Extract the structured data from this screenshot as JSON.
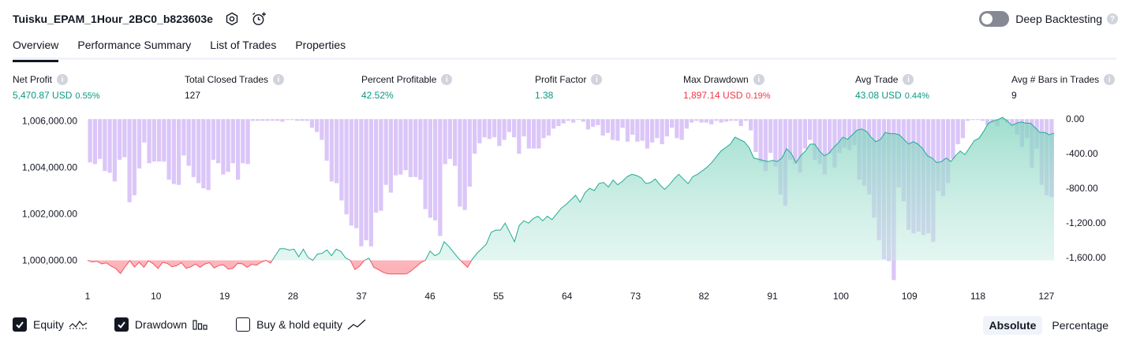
{
  "header": {
    "title": "Tuisku_EPAM_1Hour_2BC0_b823603e",
    "deep_backtesting_label": "Deep Backtesting"
  },
  "tabs": [
    {
      "label": "Overview",
      "active": true
    },
    {
      "label": "Performance Summary",
      "active": false
    },
    {
      "label": "List of Trades",
      "active": false
    },
    {
      "label": "Properties",
      "active": false
    }
  ],
  "metrics": [
    {
      "label": "Net Profit",
      "value": "5,470.87 USD",
      "pct": "0.55%",
      "color": "#089981"
    },
    {
      "label": "Total Closed Trades",
      "value": "127",
      "pct": "",
      "color": "#131722"
    },
    {
      "label": "Percent Profitable",
      "value": "42.52%",
      "pct": "",
      "color": "#089981"
    },
    {
      "label": "Profit Factor",
      "value": "1.38",
      "pct": "",
      "color": "#089981"
    },
    {
      "label": "Max Drawdown",
      "value": "1,897.14 USD",
      "pct": "0.19%",
      "color": "#f23645"
    },
    {
      "label": "Avg Trade",
      "value": "43.08 USD",
      "pct": "0.44%",
      "color": "#089981"
    },
    {
      "label": "Avg # Bars in Trades",
      "value": "9",
      "pct": "",
      "color": "#131722"
    }
  ],
  "legend": {
    "equity_label": "Equity",
    "drawdown_label": "Drawdown",
    "buy_hold_label": "Buy & hold equity"
  },
  "modes": {
    "absolute_label": "Absolute",
    "percentage_label": "Percentage"
  },
  "chart_data": {
    "type": "line",
    "x_ticks": [
      "1",
      "10",
      "19",
      "28",
      "37",
      "46",
      "55",
      "64",
      "73",
      "82",
      "91",
      "100",
      "109",
      "118",
      "127"
    ],
    "y_left_ticks": [
      "1,006,000.00",
      "1,004,000.00",
      "1,002,000.00",
      "1,000,000.00"
    ],
    "y_right_ticks": [
      "0.00",
      "-400.00",
      "-800.00",
      "-1,200.00",
      "-1,600.00"
    ],
    "y_left_range": [
      999000,
      1006150
    ],
    "y_right_range": [
      -1900,
      20
    ],
    "baseline": 1000000,
    "x_range": [
      1,
      128
    ],
    "colors": {
      "equity_line": "#22ab94",
      "equity_fill_positive": "#c7ebe2",
      "equity_negative": "#f7525f",
      "drawdown_bar": "#d9c3f8"
    },
    "series": [
      {
        "name": "Equity",
        "kind": "line",
        "values": [
          1000000,
          999930,
          999960,
          999850,
          999890,
          999750,
          999650,
          999430,
          999720,
          999990,
          999710,
          999920,
          999700,
          999980,
          999850,
          999650,
          999910,
          999870,
          999720,
          999770,
          999900,
          999660,
          999720,
          999840,
          999700,
          999840,
          999900,
          999670,
          999780,
          999800,
          999620,
          999660,
          999870,
          999850,
          999700,
          999830,
          999790,
          999920,
          1000000,
          999880,
          1000200,
          1000500,
          1000500,
          1000440,
          1000480,
          1000150,
          1000480,
          1000120,
          1000000,
          1000270,
          1000300,
          1000450,
          1000200,
          1000480,
          1000380,
          1000100,
          1000000,
          999600,
          999750,
          1000000,
          1000090,
          999700,
          999600,
          999480,
          999420,
          999410,
          999420,
          999410,
          999420,
          999550,
          999720,
          999900,
          1000000,
          1000400,
          1000200,
          1000300,
          1000800,
          1000600,
          1000350,
          1000100,
          999890,
          999700,
          1000050,
          1000300,
          1000500,
          1000700,
          1001200,
          1001300,
          1001300,
          1001600,
          1001200,
          1000800,
          1001500,
          1001700,
          1001600,
          1001800,
          1001900,
          1001700,
          1001900,
          1001750,
          1002000,
          1002250,
          1002400,
          1002600,
          1002800,
          1002500,
          1002900,
          1003100,
          1003000,
          1003300,
          1003350,
          1003150,
          1003450,
          1003250,
          1003400,
          1003600,
          1003700,
          1003650,
          1003550,
          1003300,
          1003350,
          1003500,
          1003250,
          1003050,
          1003250,
          1003500,
          1003700,
          1003500,
          1003300,
          1003600,
          1003700,
          1003850,
          1004000,
          1004200,
          1004450,
          1004700,
          1004850,
          1005000,
          1005300,
          1005200,
          1005100,
          1004850,
          1004400,
          1004350,
          1004300,
          1004250,
          1004300,
          1004250,
          1004400,
          1004800,
          1004600,
          1004200,
          1004500,
          1004700,
          1005000,
          1005000,
          1004700,
          1004500,
          1004600,
          1004850,
          1005050,
          1005300,
          1005200,
          1005400,
          1005600,
          1005650,
          1005550,
          1005300,
          1005100,
          1005200,
          1005500,
          1005450,
          1005450,
          1005400,
          1005200,
          1005000,
          1005100,
          1005000,
          1004800,
          1004500,
          1004400,
          1004200,
          1004250,
          1004400,
          1004250,
          1004500,
          1004700,
          1004550,
          1004850,
          1005150,
          1005250,
          1005550,
          1005900,
          1006000,
          1006050,
          1006150,
          1006000,
          1005800,
          1005900,
          1005950,
          1005900,
          1005900,
          1005700,
          1005500,
          1005500,
          1005400,
          1005470
        ]
      },
      {
        "name": "Drawdown",
        "kind": "bar",
        "values": [
          -500,
          -520,
          -460,
          -600,
          -620,
          -720,
          -470,
          -440,
          -960,
          -880,
          -570,
          -270,
          -510,
          -490,
          -490,
          -490,
          -700,
          -750,
          -760,
          -420,
          -540,
          -670,
          -740,
          -800,
          -820,
          -470,
          -510,
          -640,
          -610,
          -510,
          -700,
          -510,
          -520,
          -20,
          -20,
          -20,
          -20,
          -20,
          -20,
          -30,
          -10,
          -10,
          -20,
          -20,
          -20,
          -100,
          -150,
          -240,
          -480,
          -720,
          -740,
          -940,
          -1100,
          -1230,
          -1260,
          -1470,
          -1400,
          -1470,
          -1080,
          -1060,
          -760,
          -850,
          -650,
          -640,
          -590,
          -670,
          -670,
          -700,
          -1040,
          -1140,
          -1170,
          -1350,
          -520,
          -460,
          -540,
          -1010,
          -1050,
          -780,
          -400,
          -280,
          -210,
          -230,
          -210,
          -310,
          -240,
          -150,
          -210,
          -400,
          -200,
          -340,
          -340,
          -340,
          -220,
          -190,
          -110,
          -80,
          -50,
          -20,
          -40,
          -10,
          -30,
          -120,
          -90,
          -70,
          -190,
          -160,
          -240,
          -250,
          -100,
          -260,
          -180,
          -260,
          -250,
          -340,
          -270,
          -220,
          -290,
          -200,
          -100,
          -220,
          -240,
          -110,
          -40,
          -20,
          -40,
          -40,
          -60,
          -20,
          -40,
          -30,
          -20,
          -20,
          -80,
          -20,
          -130,
          -380,
          -500,
          -600,
          -390,
          -550,
          -870,
          -1000,
          -470,
          -520,
          -620,
          -340,
          -240,
          -470,
          -520,
          -640,
          -400,
          -560,
          -390,
          -330,
          -360,
          -300,
          -700,
          -770,
          -870,
          -1140,
          -1400,
          -1620,
          -1640,
          -1860,
          -790,
          -950,
          -1280,
          -1320,
          -1300,
          -1340,
          -1320,
          -1420,
          -830,
          -890,
          -740,
          -460,
          -290,
          -220,
          -20,
          -10,
          -10,
          -20,
          -70,
          -40,
          -80,
          -10,
          -40,
          -70,
          -180,
          -320,
          -220,
          -560,
          -340,
          -760,
          -880,
          -900
        ]
      }
    ]
  }
}
